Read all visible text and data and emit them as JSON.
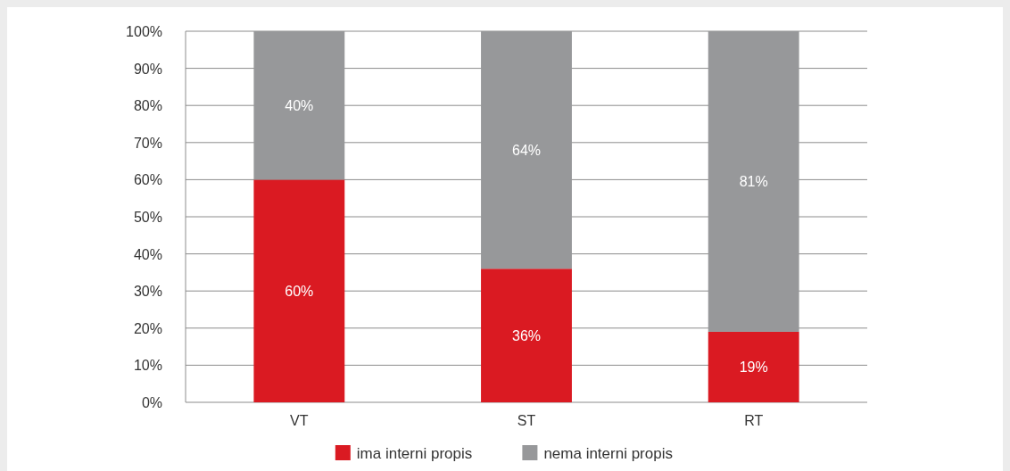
{
  "chart_data": {
    "type": "bar",
    "stacked": true,
    "categories": [
      "VT",
      "ST",
      "RT"
    ],
    "series": [
      {
        "name": "ima interni propis",
        "color": "#da1a22",
        "values": [
          60,
          36,
          19
        ],
        "value_labels": [
          "60%",
          "36%",
          "19%"
        ]
      },
      {
        "name": "nema interni propis",
        "color": "#97989a",
        "values": [
          40,
          64,
          81
        ],
        "value_labels": [
          "40%",
          "64%",
          "81%"
        ]
      }
    ],
    "ylim": [
      0,
      100
    ],
    "yticks": [
      {
        "value": 0,
        "label": "0%"
      },
      {
        "value": 10,
        "label": "10%"
      },
      {
        "value": 20,
        "label": "20%"
      },
      {
        "value": 30,
        "label": "30%"
      },
      {
        "value": 40,
        "label": "40%"
      },
      {
        "value": 50,
        "label": "50%"
      },
      {
        "value": 60,
        "label": "60%"
      },
      {
        "value": 70,
        "label": "70%"
      },
      {
        "value": 80,
        "label": "80%"
      },
      {
        "value": 90,
        "label": "90%"
      },
      {
        "value": 100,
        "label": "100%"
      }
    ],
    "grid": "y",
    "legend": "bottom"
  }
}
